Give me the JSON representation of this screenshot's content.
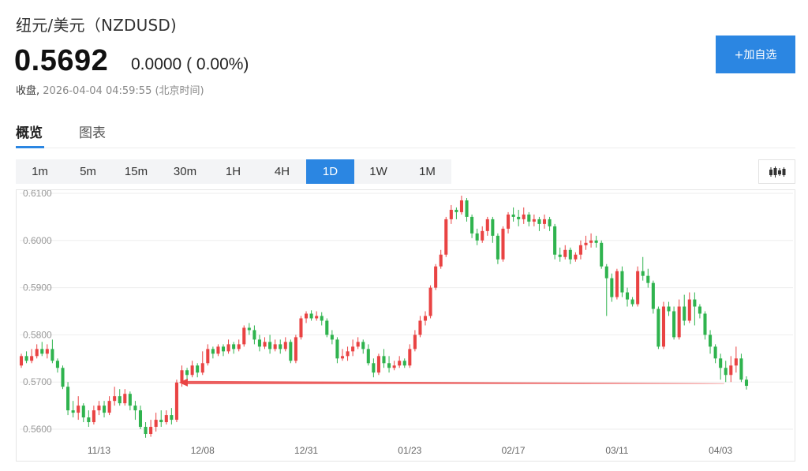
{
  "header": {
    "title": "纽元/美元（NZDUSD)",
    "price": "0.5692",
    "change": "0.0000 ( 0.00%)",
    "status": "收盘,",
    "timestamp": "2026-04-04 04:59:55 (北京时间)",
    "add_button": "+加自选"
  },
  "tabs": [
    {
      "label": "概览",
      "active": true
    },
    {
      "label": "图表",
      "active": false
    }
  ],
  "periods": [
    "1m",
    "5m",
    "15m",
    "30m",
    "1H",
    "4H",
    "1D",
    "1W",
    "1M"
  ],
  "active_period": "1D",
  "icons": {
    "chart_type": "candlestick-icon"
  },
  "colors": {
    "accent": "#2b86e2",
    "up": "#e94343",
    "down": "#2fb34e",
    "arrow": "#e94343"
  },
  "chart_data": {
    "type": "candlestick",
    "title": "",
    "xlabel": "",
    "ylabel": "",
    "ylim": [
      0.558,
      0.61
    ],
    "yticks": [
      "0.6100",
      "0.6000",
      "0.5900",
      "0.5800",
      "0.5700",
      "0.5600"
    ],
    "xticks": [
      {
        "label": "11/13",
        "index": 15
      },
      {
        "label": "12/08",
        "index": 35
      },
      {
        "label": "12/31",
        "index": 55
      },
      {
        "label": "01/23",
        "index": 75
      },
      {
        "label": "02/17",
        "index": 95
      },
      {
        "label": "03/11",
        "index": 115
      },
      {
        "label": "04/03",
        "index": 135
      }
    ],
    "grid": true,
    "annotation": {
      "type": "arrow",
      "from_index": 136,
      "to_index": 30,
      "level": 0.5699
    },
    "candles": [
      [
        0.5735,
        0.5755,
        0.573,
        0.576
      ],
      [
        0.5755,
        0.5745,
        0.574,
        0.5765
      ],
      [
        0.5745,
        0.5755,
        0.574,
        0.577
      ],
      [
        0.5755,
        0.577,
        0.575,
        0.578
      ],
      [
        0.577,
        0.576,
        0.5755,
        0.5785
      ],
      [
        0.576,
        0.577,
        0.575,
        0.578
      ],
      [
        0.577,
        0.5745,
        0.574,
        0.579
      ],
      [
        0.5745,
        0.573,
        0.572,
        0.575
      ],
      [
        0.573,
        0.569,
        0.5685,
        0.5735
      ],
      [
        0.569,
        0.564,
        0.563,
        0.57
      ],
      [
        0.564,
        0.5635,
        0.5625,
        0.566
      ],
      [
        0.5635,
        0.565,
        0.562,
        0.567
      ],
      [
        0.565,
        0.5625,
        0.5615,
        0.5655
      ],
      [
        0.5625,
        0.5615,
        0.5605,
        0.564
      ],
      [
        0.5615,
        0.564,
        0.561,
        0.565
      ],
      [
        0.564,
        0.565,
        0.563,
        0.566
      ],
      [
        0.565,
        0.5635,
        0.5625,
        0.566
      ],
      [
        0.5635,
        0.566,
        0.563,
        0.567
      ],
      [
        0.566,
        0.567,
        0.565,
        0.569
      ],
      [
        0.567,
        0.5655,
        0.565,
        0.5685
      ],
      [
        0.5655,
        0.5675,
        0.565,
        0.5685
      ],
      [
        0.5675,
        0.565,
        0.564,
        0.568
      ],
      [
        0.565,
        0.564,
        0.562,
        0.566
      ],
      [
        0.564,
        0.5605,
        0.56,
        0.565
      ],
      [
        0.5605,
        0.559,
        0.5582,
        0.5615
      ],
      [
        0.559,
        0.5605,
        0.5584,
        0.562
      ],
      [
        0.5605,
        0.562,
        0.5595,
        0.5635
      ],
      [
        0.562,
        0.5615,
        0.5605,
        0.564
      ],
      [
        0.5615,
        0.563,
        0.561,
        0.564
      ],
      [
        0.563,
        0.562,
        0.561,
        0.5645
      ],
      [
        0.562,
        0.5699,
        0.5615,
        0.5705
      ],
      [
        0.5699,
        0.5725,
        0.569,
        0.5735
      ],
      [
        0.5725,
        0.5715,
        0.57,
        0.573
      ],
      [
        0.5715,
        0.5735,
        0.571,
        0.5745
      ],
      [
        0.5735,
        0.572,
        0.571,
        0.574
      ],
      [
        0.572,
        0.574,
        0.5715,
        0.5765
      ],
      [
        0.574,
        0.577,
        0.5735,
        0.578
      ],
      [
        0.577,
        0.576,
        0.575,
        0.5775
      ],
      [
        0.576,
        0.5775,
        0.5755,
        0.578
      ],
      [
        0.5775,
        0.5765,
        0.5755,
        0.578
      ],
      [
        0.5765,
        0.578,
        0.576,
        0.579
      ],
      [
        0.578,
        0.577,
        0.576,
        0.5785
      ],
      [
        0.577,
        0.578,
        0.5765,
        0.579
      ],
      [
        0.578,
        0.5815,
        0.5775,
        0.582
      ],
      [
        0.5815,
        0.581,
        0.58,
        0.5825
      ],
      [
        0.581,
        0.579,
        0.578,
        0.582
      ],
      [
        0.579,
        0.5775,
        0.5765,
        0.58
      ],
      [
        0.5775,
        0.5785,
        0.577,
        0.5795
      ],
      [
        0.5785,
        0.577,
        0.576,
        0.58
      ],
      [
        0.577,
        0.578,
        0.5765,
        0.579
      ],
      [
        0.578,
        0.577,
        0.576,
        0.579
      ],
      [
        0.577,
        0.5785,
        0.5765,
        0.5795
      ],
      [
        0.5785,
        0.5745,
        0.574,
        0.579
      ],
      [
        0.5745,
        0.5795,
        0.574,
        0.58
      ],
      [
        0.5795,
        0.5835,
        0.579,
        0.584
      ],
      [
        0.5835,
        0.5845,
        0.5825,
        0.585
      ],
      [
        0.5845,
        0.5835,
        0.583,
        0.5852
      ],
      [
        0.5835,
        0.584,
        0.583,
        0.585
      ],
      [
        0.584,
        0.583,
        0.582,
        0.5848
      ],
      [
        0.583,
        0.58,
        0.5795,
        0.5835
      ],
      [
        0.58,
        0.579,
        0.578,
        0.581
      ],
      [
        0.579,
        0.575,
        0.574,
        0.5795
      ],
      [
        0.575,
        0.5755,
        0.5745,
        0.577
      ],
      [
        0.5755,
        0.5765,
        0.5745,
        0.5775
      ],
      [
        0.5765,
        0.5775,
        0.5755,
        0.579
      ],
      [
        0.5775,
        0.5785,
        0.577,
        0.5795
      ],
      [
        0.5785,
        0.577,
        0.576,
        0.579
      ],
      [
        0.577,
        0.574,
        0.5735,
        0.578
      ],
      [
        0.574,
        0.572,
        0.571,
        0.575
      ],
      [
        0.572,
        0.5755,
        0.5715,
        0.576
      ],
      [
        0.5755,
        0.574,
        0.573,
        0.577
      ],
      [
        0.574,
        0.573,
        0.572,
        0.5755
      ],
      [
        0.573,
        0.5735,
        0.5725,
        0.5745
      ],
      [
        0.5735,
        0.5745,
        0.573,
        0.5755
      ],
      [
        0.5745,
        0.5735,
        0.573,
        0.575
      ],
      [
        0.5735,
        0.577,
        0.573,
        0.578
      ],
      [
        0.577,
        0.58,
        0.5765,
        0.581
      ],
      [
        0.58,
        0.583,
        0.5795,
        0.584
      ],
      [
        0.583,
        0.584,
        0.582,
        0.585
      ],
      [
        0.584,
        0.59,
        0.5835,
        0.5905
      ],
      [
        0.59,
        0.5945,
        0.5895,
        0.595
      ],
      [
        0.5945,
        0.597,
        0.594,
        0.598
      ],
      [
        0.597,
        0.6045,
        0.5965,
        0.605
      ],
      [
        0.6045,
        0.6065,
        0.6035,
        0.6075
      ],
      [
        0.6065,
        0.606,
        0.6045,
        0.607
      ],
      [
        0.606,
        0.6085,
        0.6055,
        0.6095
      ],
      [
        0.6085,
        0.605,
        0.604,
        0.609
      ],
      [
        0.605,
        0.6015,
        0.6005,
        0.6055
      ],
      [
        0.6015,
        0.6,
        0.599,
        0.6025
      ],
      [
        0.6,
        0.602,
        0.5995,
        0.603
      ],
      [
        0.602,
        0.6045,
        0.601,
        0.605
      ],
      [
        0.6045,
        0.601,
        0.5995,
        0.605
      ],
      [
        0.601,
        0.596,
        0.595,
        0.6015
      ],
      [
        0.596,
        0.6025,
        0.5955,
        0.603
      ],
      [
        0.6025,
        0.6055,
        0.6015,
        0.606
      ],
      [
        0.6055,
        0.605,
        0.604,
        0.607
      ],
      [
        0.605,
        0.6045,
        0.603,
        0.6065
      ],
      [
        0.6045,
        0.6055,
        0.6035,
        0.607
      ],
      [
        0.6055,
        0.604,
        0.603,
        0.606
      ],
      [
        0.604,
        0.6045,
        0.603,
        0.6055
      ],
      [
        0.6045,
        0.6035,
        0.602,
        0.605
      ],
      [
        0.6035,
        0.6045,
        0.6025,
        0.6055
      ],
      [
        0.6045,
        0.603,
        0.602,
        0.605
      ],
      [
        0.603,
        0.597,
        0.596,
        0.6035
      ],
      [
        0.597,
        0.5965,
        0.5955,
        0.5985
      ],
      [
        0.5965,
        0.598,
        0.596,
        0.599
      ],
      [
        0.598,
        0.596,
        0.595,
        0.5985
      ],
      [
        0.596,
        0.597,
        0.5955,
        0.5975
      ],
      [
        0.597,
        0.599,
        0.596,
        0.6
      ],
      [
        0.599,
        0.5995,
        0.598,
        0.601
      ],
      [
        0.5995,
        0.6,
        0.5985,
        0.6015
      ],
      [
        0.6,
        0.5995,
        0.5985,
        0.601
      ],
      [
        0.5995,
        0.5945,
        0.594,
        0.6
      ],
      [
        0.5945,
        0.592,
        0.584,
        0.595
      ],
      [
        0.592,
        0.588,
        0.587,
        0.593
      ],
      [
        0.588,
        0.5935,
        0.5875,
        0.594
      ],
      [
        0.5935,
        0.589,
        0.588,
        0.5945
      ],
      [
        0.589,
        0.5875,
        0.586,
        0.59
      ],
      [
        0.5875,
        0.5865,
        0.586,
        0.588
      ],
      [
        0.5865,
        0.5935,
        0.586,
        0.5945
      ],
      [
        0.5935,
        0.5925,
        0.5915,
        0.5965
      ],
      [
        0.5925,
        0.591,
        0.59,
        0.594
      ],
      [
        0.591,
        0.5855,
        0.5845,
        0.5915
      ],
      [
        0.5855,
        0.5775,
        0.577,
        0.586
      ],
      [
        0.5775,
        0.586,
        0.577,
        0.587
      ],
      [
        0.586,
        0.585,
        0.584,
        0.587
      ],
      [
        0.585,
        0.5795,
        0.579,
        0.586
      ],
      [
        0.5795,
        0.586,
        0.579,
        0.5875
      ],
      [
        0.586,
        0.583,
        0.582,
        0.5885
      ],
      [
        0.583,
        0.5875,
        0.5825,
        0.589
      ],
      [
        0.5875,
        0.586,
        0.582,
        0.589
      ],
      [
        0.586,
        0.5845,
        0.5835,
        0.5865
      ],
      [
        0.5845,
        0.58,
        0.579,
        0.585
      ],
      [
        0.58,
        0.5775,
        0.576,
        0.581
      ],
      [
        0.5775,
        0.575,
        0.574,
        0.578
      ],
      [
        0.575,
        0.573,
        0.5705,
        0.576
      ],
      [
        0.573,
        0.5715,
        0.57,
        0.5745
      ],
      [
        0.5715,
        0.5735,
        0.57,
        0.5755
      ],
      [
        0.5735,
        0.575,
        0.572,
        0.5775
      ],
      [
        0.575,
        0.5705,
        0.57,
        0.576
      ],
      [
        0.5705,
        0.5692,
        0.5684,
        0.5712
      ]
    ]
  }
}
